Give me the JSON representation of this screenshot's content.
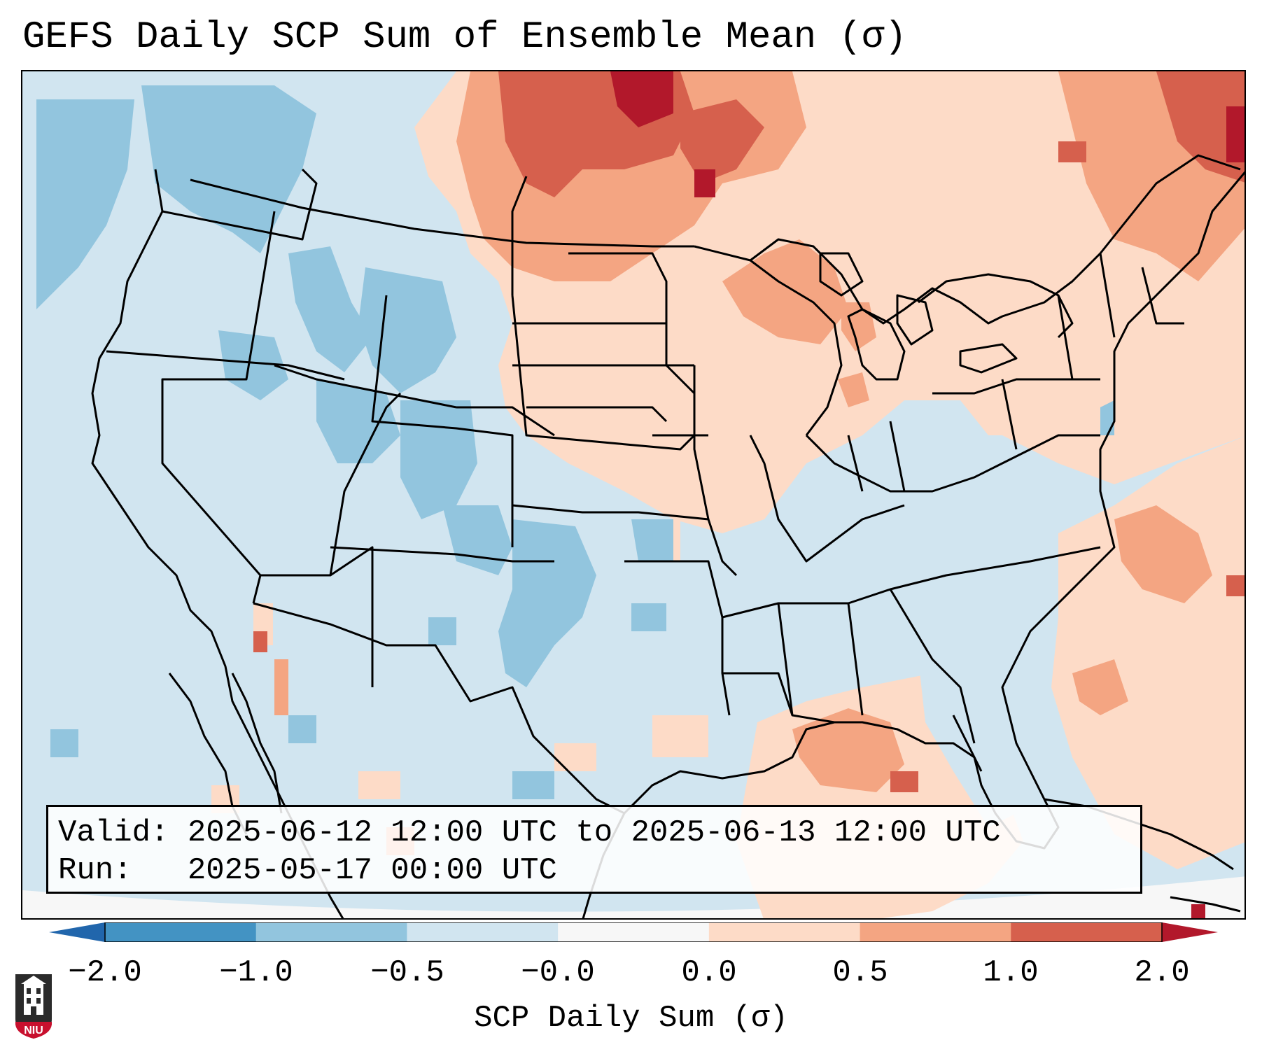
{
  "title": "GEFS Daily SCP Sum of Ensemble Mean (σ)",
  "info": {
    "valid_label": "Valid:",
    "valid_value": "2025-06-12 12:00 UTC to 2025-06-13 12:00 UTC",
    "run_label": "Run:",
    "run_value": "2025-05-17 00:00 UTC"
  },
  "colorbar": {
    "label": "SCP Daily Sum (σ)",
    "ticks": [
      "−2.0",
      "−1.0",
      "−0.5",
      "−0.0",
      "0.0",
      "0.5",
      "1.0",
      "2.0"
    ],
    "colors": [
      "#4393c3",
      "#92c5de",
      "#d1e5f0",
      "#f7f7f7",
      "#fddbc7",
      "#f4a582",
      "#d6604d"
    ],
    "extend_low_color": "#2166ac",
    "extend_high_color": "#b2182b"
  },
  "legend_colors": {
    "very_low": "#4393c3",
    "low": "#92c5de",
    "slightly_low": "#d1e5f0",
    "neutral": "#f7f7f7",
    "slightly_high": "#fddbc7",
    "high": "#f4a582",
    "very_high": "#d6604d",
    "extreme": "#b2182b"
  },
  "logo": {
    "text": "NIU"
  }
}
